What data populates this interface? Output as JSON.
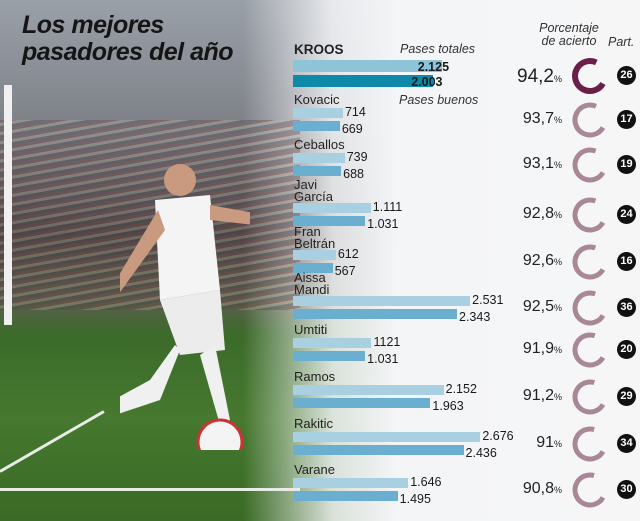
{
  "title": [
    "Los mejores",
    "pasadores del año"
  ],
  "headers": {
    "total": "Pases totales",
    "good": "Pases buenos",
    "pct": [
      "Porcentaje",
      "de acierto"
    ],
    "matches": "Part."
  },
  "colors": {
    "total_bar": "#a9d0e0",
    "good_bar": "#6aaed0",
    "main_total_bar": "#8fc3d8",
    "main_good_bar": "#0e8aa8",
    "main_ring": "#6a1f48",
    "ring": "#a88896",
    "badge": "#111111"
  },
  "chart_data": {
    "type": "bar",
    "series": [
      {
        "name": "Pases totales",
        "values": [
          2125,
          714,
          739,
          1111,
          612,
          2531,
          1121,
          2152,
          2676,
          1646
        ]
      },
      {
        "name": "Pases buenos",
        "values": [
          2003,
          669,
          688,
          1031,
          567,
          2343,
          1031,
          1963,
          2436,
          1495
        ]
      }
    ],
    "categories": [
      "KROOS",
      "Kovacic",
      "Ceballos",
      "Javi García",
      "Fran Beltrán",
      "Aissa Mandi",
      "Umtiti",
      "Ramos",
      "Rakitic",
      "Varane"
    ],
    "rows": [
      {
        "name": [
          "KROOS"
        ],
        "total": "2.125",
        "good": "2.003",
        "pct": "94,2",
        "pct_value": 94.2,
        "matches": "26"
      },
      {
        "name": [
          "Kovacic"
        ],
        "total": "714",
        "good": "669",
        "pct": "93,7",
        "pct_value": 93.7,
        "matches": "17"
      },
      {
        "name": [
          "Ceballos"
        ],
        "total": "739",
        "good": "688",
        "pct": "93,1",
        "pct_value": 93.1,
        "matches": "19"
      },
      {
        "name": [
          "Javi",
          "García"
        ],
        "total": "1.111",
        "good": "1.031",
        "pct": "92,8",
        "pct_value": 92.8,
        "matches": "24"
      },
      {
        "name": [
          "Fran",
          "Beltrán"
        ],
        "total": "612",
        "good": "567",
        "pct": "92,6",
        "pct_value": 92.6,
        "matches": "16"
      },
      {
        "name": [
          "Aissa",
          "Mandi"
        ],
        "total": "2.531",
        "good": "2.343",
        "pct": "92,5",
        "pct_value": 92.5,
        "matches": "36"
      },
      {
        "name": [
          "Umtiti"
        ],
        "total": "1121",
        "good": "1.031",
        "pct": "91,9",
        "pct_value": 91.9,
        "matches": "20"
      },
      {
        "name": [
          "Ramos"
        ],
        "total": "2.152",
        "good": "1.963",
        "pct": "91,2",
        "pct_value": 91.2,
        "matches": "29"
      },
      {
        "name": [
          "Rakitic"
        ],
        "total": "2.676",
        "good": "2.436",
        "pct": "91",
        "pct_value": 91.0,
        "matches": "34"
      },
      {
        "name": [
          "Varane"
        ],
        "total": "1.646",
        "good": "1.495",
        "pct": "90,8",
        "pct_value": 90.8,
        "matches": "30"
      }
    ],
    "pct_unit": "%"
  }
}
